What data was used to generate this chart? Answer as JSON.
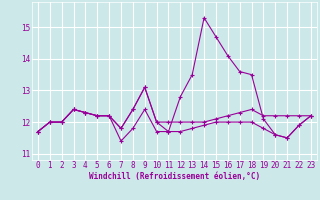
{
  "x": [
    0,
    1,
    2,
    3,
    4,
    5,
    6,
    7,
    8,
    9,
    10,
    11,
    12,
    13,
    14,
    15,
    16,
    17,
    18,
    19,
    20,
    21,
    22,
    23
  ],
  "line1": [
    11.7,
    12.0,
    12.0,
    12.4,
    12.3,
    12.2,
    12.2,
    11.4,
    11.8,
    12.4,
    11.7,
    11.7,
    12.8,
    13.5,
    15.3,
    14.7,
    14.1,
    13.6,
    13.5,
    12.1,
    11.6,
    11.5,
    11.9,
    12.2
  ],
  "line2": [
    11.7,
    12.0,
    12.0,
    12.4,
    12.3,
    12.2,
    12.2,
    11.8,
    12.4,
    13.1,
    12.0,
    12.0,
    12.0,
    12.0,
    12.0,
    12.1,
    12.2,
    12.3,
    12.4,
    12.2,
    12.2,
    12.2,
    12.2,
    12.2
  ],
  "line3": [
    11.7,
    12.0,
    12.0,
    12.4,
    12.3,
    12.2,
    12.2,
    11.8,
    12.4,
    13.1,
    12.0,
    11.7,
    11.7,
    11.8,
    11.9,
    12.0,
    12.0,
    12.0,
    12.0,
    11.8,
    11.6,
    11.5,
    11.9,
    12.2
  ],
  "line_color": "#990099",
  "bg_color": "#cce8e8",
  "grid_color": "#ffffff",
  "ylabel_values": [
    11,
    12,
    13,
    14,
    15
  ],
  "xlabel": "Windchill (Refroidissement éolien,°C)",
  "ylim": [
    10.8,
    15.8
  ],
  "xlim": [
    -0.5,
    23.5
  ],
  "tick_fontsize": 5.5,
  "xlabel_fontsize": 5.5
}
